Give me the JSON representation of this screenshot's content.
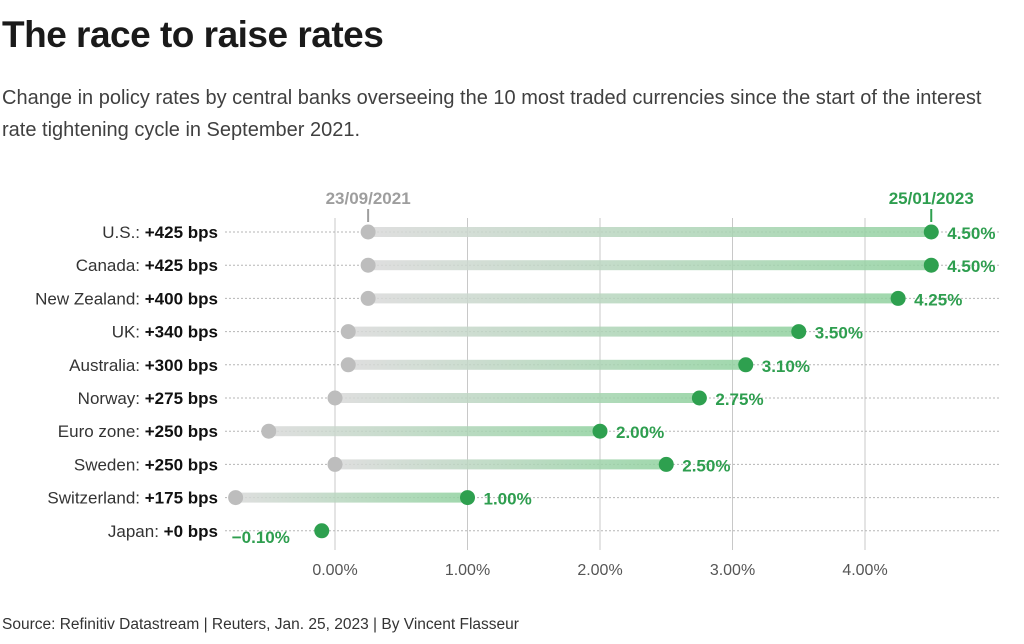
{
  "title": "The race to raise rates",
  "subtitle": "Change in policy rates by central banks overseeing the 10 most traded currencies since the start of the interest rate tightening cycle in September 2021.",
  "source": "Source: Refinitiv Datastream | Reuters, Jan. 25, 2023 | By Vincent Flasseur",
  "colors": {
    "start": "#bdbdbd",
    "end": "#2ea04f",
    "start_label": "#9e9e9e",
    "end_label": "#2e9e4f"
  },
  "chart_data": {
    "type": "dumbbell",
    "start_label": "23/09/2021",
    "end_label": "25/01/2023",
    "xlim": [
      -0.8,
      4.8
    ],
    "x_ticks": [
      {
        "value": 0,
        "label": "0.00%"
      },
      {
        "value": 1,
        "label": "1.00%"
      },
      {
        "value": 2,
        "label": "2.00%"
      },
      {
        "value": 3,
        "label": "3.00%"
      },
      {
        "value": 4,
        "label": "4.00%"
      }
    ],
    "grid": true,
    "series": [
      {
        "country": "U.S.:",
        "change": "+425 bps",
        "start": 0.25,
        "end": 4.5,
        "end_label": "4.50%"
      },
      {
        "country": "Canada:",
        "change": "+425 bps",
        "start": 0.25,
        "end": 4.5,
        "end_label": "4.50%"
      },
      {
        "country": "New Zealand:",
        "change": "+400 bps",
        "start": 0.25,
        "end": 4.25,
        "end_label": "4.25%"
      },
      {
        "country": "UK:",
        "change": "+340 bps",
        "start": 0.1,
        "end": 3.5,
        "end_label": "3.50%"
      },
      {
        "country": "Australia:",
        "change": "+300 bps",
        "start": 0.1,
        "end": 3.1,
        "end_label": "3.10%"
      },
      {
        "country": "Norway:",
        "change": "+275 bps",
        "start": 0.0,
        "end": 2.75,
        "end_label": "2.75%"
      },
      {
        "country": "Euro zone:",
        "change": "+250 bps",
        "start": -0.5,
        "end": 2.0,
        "end_label": "2.00%"
      },
      {
        "country": "Sweden:",
        "change": "+250 bps",
        "start": 0.0,
        "end": 2.5,
        "end_label": "2.50%"
      },
      {
        "country": "Switzerland:",
        "change": "+175 bps",
        "start": -0.75,
        "end": 1.0,
        "end_label": "1.00%"
      },
      {
        "country": "Japan:",
        "change": "+0 bps",
        "start": -0.1,
        "end": -0.1,
        "end_label": "−0.10%"
      }
    ]
  }
}
